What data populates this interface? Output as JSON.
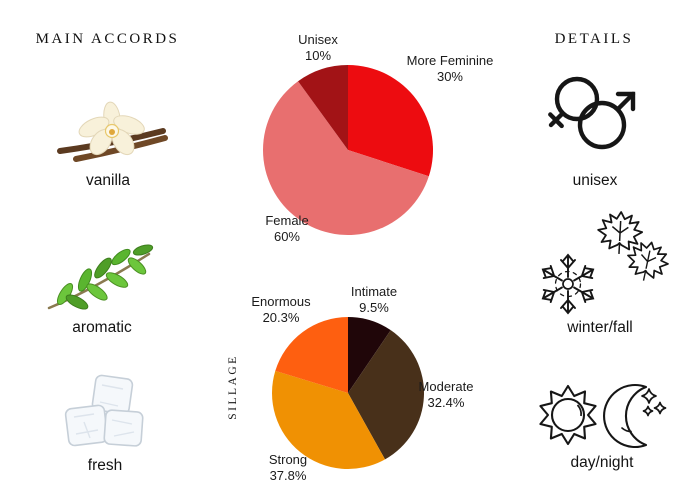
{
  "page": {
    "background": "#ffffff"
  },
  "left_panel": {
    "title": "MAIN ACCORDS",
    "accords": [
      {
        "label": "vanilla",
        "icon": "vanilla-flower-image"
      },
      {
        "label": "aromatic",
        "icon": "green-herb-sprig-image"
      },
      {
        "label": "fresh",
        "icon": "ice-cubes-image"
      }
    ]
  },
  "right_panel": {
    "title": "DETAILS",
    "details": [
      {
        "label": "unisex",
        "icon": "female-male-gender-icon"
      },
      {
        "label": "winter/fall",
        "icon": "snowflake-and-maple-leaves-icon"
      },
      {
        "label": "day/night",
        "icon": "sun-and-crescent-moon-icon"
      }
    ]
  },
  "chart_data": [
    {
      "type": "pie",
      "name": "gender-audience",
      "start_angle_deg": 0,
      "direction": "clockwise",
      "legend_position": "labels-around-pie",
      "slices": [
        {
          "label": "More Feminine",
          "value": 30,
          "display": "30%",
          "color": "#ed0c10"
        },
        {
          "label": "Female",
          "value": 60,
          "display": "60%",
          "color": "#e86f6f"
        },
        {
          "label": "Unisex",
          "value": 10,
          "display": "10%",
          "color": "#a21316"
        }
      ]
    },
    {
      "type": "pie",
      "name": "sillage",
      "axis_label": "SILLAGE",
      "start_angle_deg": 0,
      "direction": "clockwise",
      "legend_position": "labels-around-pie",
      "slices": [
        {
          "label": "Intimate",
          "value": 9.5,
          "display": "9.5%",
          "color": "#200609"
        },
        {
          "label": "Moderate",
          "value": 32.4,
          "display": "32.4%",
          "color": "#48301a"
        },
        {
          "label": "Strong",
          "value": 37.8,
          "display": "37.8%",
          "color": "#f09103"
        },
        {
          "label": "Enormous",
          "value": 20.3,
          "display": "20.3%",
          "color": "#fe5f10"
        }
      ]
    }
  ]
}
